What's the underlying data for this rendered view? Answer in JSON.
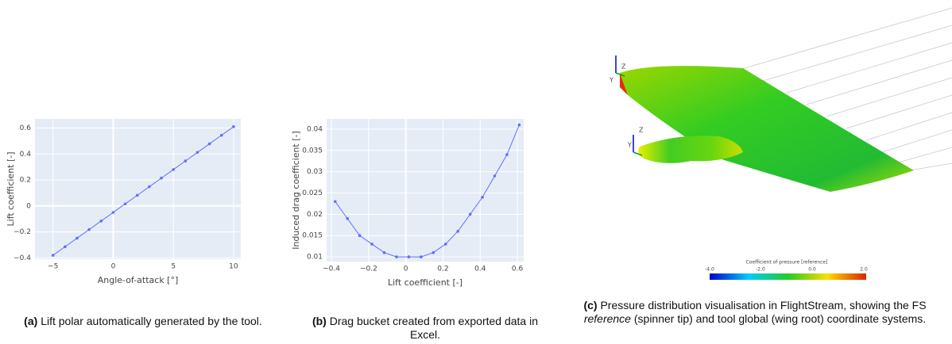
{
  "chart_data": [
    {
      "type": "line",
      "x_label": "Angle-of-attack [°]",
      "y_label": "Lift coefficient [-]",
      "x": [
        -5,
        -4,
        -3,
        -2,
        -1,
        0,
        1,
        2,
        3,
        4,
        5,
        6,
        7,
        8,
        9,
        10
      ],
      "values": [
        -0.38,
        -0.314,
        -0.248,
        -0.182,
        -0.116,
        -0.05,
        0.016,
        0.082,
        0.148,
        0.214,
        0.28,
        0.346,
        0.412,
        0.478,
        0.544,
        0.61
      ],
      "color": "#636efa",
      "xlim": [
        -6.5,
        10.6
      ],
      "ylim": [
        -0.41,
        0.67
      ],
      "xticks": [
        {
          "value": -5,
          "label": "−5"
        },
        0,
        5,
        10
      ],
      "yticks": [
        {
          "value": -0.4,
          "label": "−0.4"
        },
        {
          "value": -0.2,
          "label": "−0.2"
        },
        0,
        0.2,
        0.4,
        0.6
      ],
      "grid": true
    },
    {
      "type": "line",
      "x_label": "Lift coefficient [-]",
      "y_label": "Induced drag coefficient [-]",
      "x": [
        -0.38,
        -0.314,
        -0.248,
        -0.182,
        -0.116,
        -0.05,
        0.016,
        0.082,
        0.148,
        0.214,
        0.28,
        0.346,
        0.412,
        0.478,
        0.544,
        0.61
      ],
      "values": [
        0.023,
        0.019,
        0.015,
        0.013,
        0.011,
        0.01,
        0.01,
        0.01,
        0.011,
        0.013,
        0.016,
        0.02,
        0.024,
        0.029,
        0.034,
        0.041
      ],
      "color": "#636efa",
      "xlim": [
        -0.426,
        0.634
      ],
      "ylim": [
        0.0089,
        0.0424
      ],
      "xticks": [
        {
          "value": -0.4,
          "label": "−0.4"
        },
        {
          "value": -0.2,
          "label": "−0.2"
        },
        0,
        0.2,
        0.4,
        0.6
      ],
      "yticks": [
        0.01,
        0.015,
        0.02,
        0.025,
        0.03,
        0.035,
        0.04
      ],
      "grid": true
    }
  ],
  "render": {
    "axis_labels": [
      "Z",
      "Y",
      "Z",
      "Y"
    ],
    "colorbar_title": "Coefficient of pressure [reference]",
    "colorbar_labels": [
      "-4.0",
      "-2.0",
      "0.0",
      "2.0"
    ]
  },
  "captions": [
    {
      "tag": "(a)",
      "text": "Lift polar automatically generated by the tool."
    },
    {
      "tag": "(b)",
      "text": "Drag bucket created from exported data in Excel."
    },
    {
      "tag": "(c)",
      "text": "Pressure distribution visualisation in FlightStream, showing the FS",
      "emph": "reference",
      "rest": "(spinner tip) and tool global (wing root) coordinate systems."
    }
  ]
}
